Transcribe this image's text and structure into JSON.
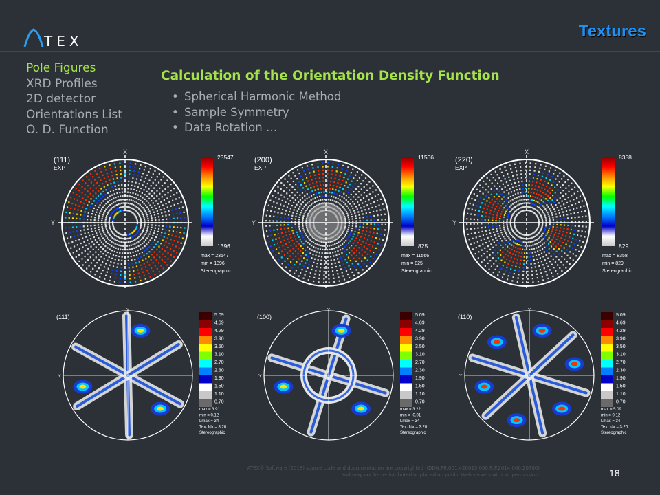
{
  "brand": {
    "logo_text": "TEX"
  },
  "page": {
    "title": "Textures",
    "number": "18"
  },
  "nav": [
    {
      "label": "Pole Figures",
      "active": true
    },
    {
      "label": "XRD Profiles",
      "active": false
    },
    {
      "label": "2D detector",
      "active": false
    },
    {
      "label": "Orientations List",
      "active": false
    },
    {
      "label": "O. D. Function",
      "active": false
    }
  ],
  "content": {
    "heading": "Calculation of the Orientation Density Function",
    "bullets": [
      "Spherical Harmonic Method",
      "Sample Symmetry",
      "Data Rotation …"
    ]
  },
  "axes": {
    "x": "X",
    "y": "Y"
  },
  "exp_figures": [
    {
      "label": "(111)",
      "sub": "EXP",
      "max": "23547",
      "min": "1396",
      "stats": [
        "max = 23547",
        "min = 1396",
        "Stereographic"
      ]
    },
    {
      "label": "(200)",
      "sub": "EXP",
      "max": "11566",
      "min": "825",
      "stats": [
        "max = 11566",
        "min = 825",
        "Stereographic"
      ]
    },
    {
      "label": "(220)",
      "sub": "EXP",
      "max": "8358",
      "min": "829",
      "stats": [
        "max = 8358",
        "min = 829",
        "Stereographic"
      ]
    }
  ],
  "calc_scale": [
    "5.09",
    "4.69",
    "4.29",
    "3.90",
    "3.50",
    "3.10",
    "2.70",
    "2.30",
    "1.90",
    "1.50",
    "1.10",
    "0.70"
  ],
  "calc_figures": [
    {
      "label": "(111)",
      "stats": [
        "max = 3.91",
        "min = 0.12",
        "Lmax = 34",
        "Tex. Idx = 3.20",
        "Stereographic"
      ]
    },
    {
      "label": "(100)",
      "stats": [
        "max = 3.22",
        "min = -0.01",
        "Lmax = 34",
        "Tex. Idx = 3.20",
        "Stereographic"
      ]
    },
    {
      "label": "(110)",
      "stats": [
        "max = 5.09",
        "min = 0.12",
        "Lmax = 34",
        "Tex. Idx = 3.20",
        "Stereographic"
      ]
    }
  ],
  "footer": [
    "ATEX© Software (2018) source code and documentation are copyrighted (IDDN.FR.001.420015.000.R.P.2014.000.20700)",
    "and may not be redistributed or placed on public Web servers without permission."
  ]
}
